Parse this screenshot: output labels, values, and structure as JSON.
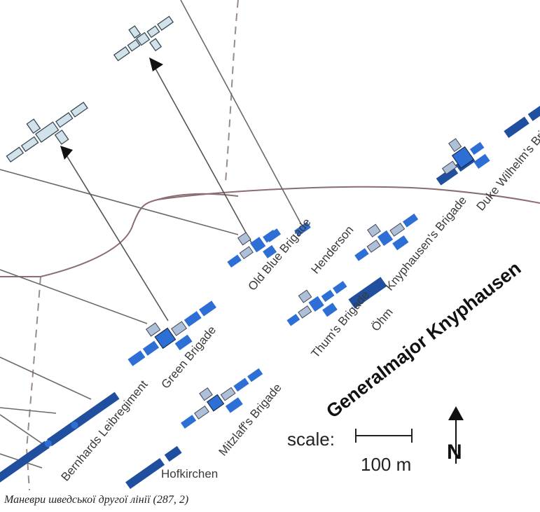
{
  "units": {
    "green_brigade": "Green Brigade",
    "old_blue_brigade": "Old Blue Brigade",
    "henderson": "Henderson",
    "knyphausens_brigade": "Knyphausen's Brigade",
    "duke_wilhelms_brigade": "Duke Wilhelm's Brigade",
    "thums_brigade": "Thum's Brigade",
    "ohm": "Öhm",
    "mitzlaffs_brigade": "Mitzlaff's Brigade",
    "bernhards_leibregiment": "Bernhards Leibregiment",
    "hofkirchen": "Hofkirchen"
  },
  "commander": "Generalmajor Knyphausen",
  "scale": {
    "label": "scale:",
    "distance": "100 m"
  },
  "north_label": "N",
  "caption": "Маневри шведської другої лінії (287, 2)",
  "colors": {
    "dark_blue": "#1f4f9e",
    "mid_blue": "#2e6fd6",
    "light_blue": "#aebfd8",
    "pale_unit": "#d2e2ea",
    "road": "#8a6e72"
  }
}
